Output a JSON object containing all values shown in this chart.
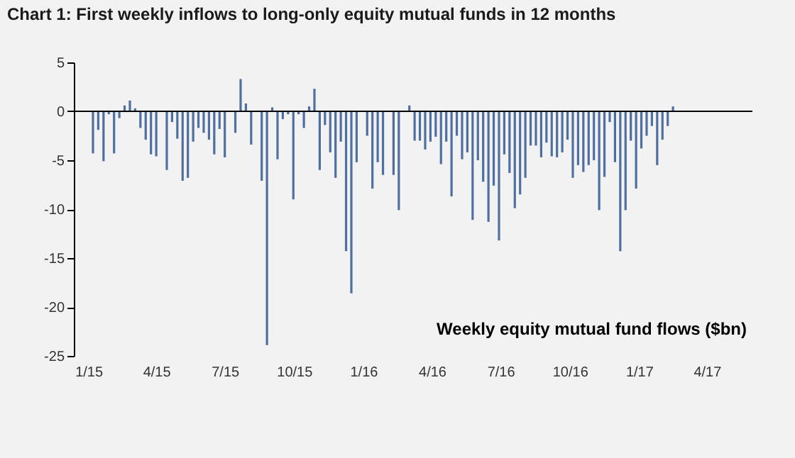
{
  "chart_data": {
    "type": "bar",
    "title": "Chart 1: First weekly inflows to long-only equity mutual funds in 12 months",
    "annotations": [
      "Weekly equity mutual fund flows ($bn)"
    ],
    "x": [
      "2015-01-07",
      "2015-01-14",
      "2015-01-21",
      "2015-01-28",
      "2015-02-04",
      "2015-02-11",
      "2015-02-18",
      "2015-02-25",
      "2015-03-04",
      "2015-03-11",
      "2015-03-18",
      "2015-03-25",
      "2015-04-01",
      "2015-04-08",
      "2015-04-15",
      "2015-04-22",
      "2015-04-29",
      "2015-05-06",
      "2015-05-13",
      "2015-05-20",
      "2015-05-27",
      "2015-06-03",
      "2015-06-10",
      "2015-06-17",
      "2015-06-24",
      "2015-07-01",
      "2015-07-08",
      "2015-07-15",
      "2015-07-22",
      "2015-07-29",
      "2015-08-05",
      "2015-08-12",
      "2015-08-19",
      "2015-08-26",
      "2015-09-02",
      "2015-09-09",
      "2015-09-16",
      "2015-09-23",
      "2015-09-30",
      "2015-10-07",
      "2015-10-14",
      "2015-10-21",
      "2015-10-28",
      "2015-11-04",
      "2015-11-11",
      "2015-11-18",
      "2015-11-25",
      "2015-12-02",
      "2015-12-09",
      "2015-12-16",
      "2015-12-23",
      "2015-12-30",
      "2016-01-06",
      "2016-01-13",
      "2016-01-20",
      "2016-01-27",
      "2016-02-03",
      "2016-02-10",
      "2016-02-17",
      "2016-02-24",
      "2016-03-02",
      "2016-03-09",
      "2016-03-16",
      "2016-03-23",
      "2016-03-30",
      "2016-04-06",
      "2016-04-13",
      "2016-04-20",
      "2016-04-27",
      "2016-05-04",
      "2016-05-11",
      "2016-05-18",
      "2016-05-25",
      "2016-06-01",
      "2016-06-08",
      "2016-06-15",
      "2016-06-22",
      "2016-06-29",
      "2016-07-06",
      "2016-07-13",
      "2016-07-20",
      "2016-07-27",
      "2016-08-03",
      "2016-08-10",
      "2016-08-17",
      "2016-08-24",
      "2016-08-31",
      "2016-09-07",
      "2016-09-14",
      "2016-09-21",
      "2016-09-28",
      "2016-10-05",
      "2016-10-12",
      "2016-10-19",
      "2016-10-26",
      "2016-11-02",
      "2016-11-09",
      "2016-11-16",
      "2016-11-23",
      "2016-11-30",
      "2016-12-07",
      "2016-12-14",
      "2016-12-21",
      "2016-12-28",
      "2017-01-04",
      "2017-01-11",
      "2017-01-18",
      "2017-01-25",
      "2017-02-01",
      "2017-02-08",
      "2017-02-15"
    ],
    "values": [
      -4.3,
      -1.9,
      -5.1,
      -0.3,
      -4.3,
      -0.7,
      0.6,
      1.1,
      0.3,
      -1.7,
      -2.9,
      -4.4,
      -4.6,
      null,
      -6.0,
      -1.1,
      -2.8,
      -7.1,
      -6.8,
      -3.1,
      -1.7,
      -2.2,
      -2.9,
      -4.4,
      -1.8,
      -4.7,
      null,
      -2.2,
      3.3,
      0.8,
      -3.4,
      null,
      -7.1,
      -23.9,
      0.4,
      -4.9,
      -0.8,
      -0.3,
      -9.0,
      -0.3,
      -1.7,
      0.5,
      2.3,
      -6.0,
      -1.4,
      -4.2,
      -6.8,
      -3.1,
      -14.3,
      -18.6,
      -5.2,
      null,
      -2.5,
      -7.9,
      -5.2,
      -6.5,
      null,
      -6.5,
      -10.1,
      null,
      0.6,
      -3.0,
      -3.0,
      -3.9,
      -3.1,
      -2.6,
      -5.4,
      -3.1,
      -8.7,
      -2.5,
      -4.9,
      -4.2,
      -11.1,
      -5.0,
      -7.2,
      -11.3,
      -7.6,
      -13.2,
      -4.4,
      -6.3,
      -9.9,
      -8.5,
      -6.8,
      -3.5,
      -3.5,
      -4.7,
      -3.2,
      -4.6,
      -4.7,
      -4.2,
      -2.9,
      -6.8,
      -5.5,
      -6.2,
      -5.5,
      -5.0,
      -10.1,
      -6.7,
      -1.1,
      -5.2,
      -14.3,
      -10.1,
      -3.0,
      -7.9,
      -3.8,
      -2.5,
      -1.5,
      -5.5,
      -2.9,
      -1.5,
      0.5
    ],
    "color": "#4f6f9f",
    "xlim": [
      "2014-12-22",
      "2017-05-22"
    ],
    "xticks": [
      {
        "value": "2015-01-01",
        "label": "1/15"
      },
      {
        "value": "2015-04-01",
        "label": "4/15"
      },
      {
        "value": "2015-07-01",
        "label": "7/15"
      },
      {
        "value": "2015-10-01",
        "label": "10/15"
      },
      {
        "value": "2016-01-01",
        "label": "1/16"
      },
      {
        "value": "2016-04-01",
        "label": "4/16"
      },
      {
        "value": "2016-07-01",
        "label": "7/16"
      },
      {
        "value": "2016-10-01",
        "label": "10/16"
      },
      {
        "value": "2017-01-01",
        "label": "1/17"
      },
      {
        "value": "2017-04-01",
        "label": "4/17"
      }
    ],
    "ylim": [
      -25,
      5
    ],
    "yticks": [
      -25,
      -20,
      -15,
      -10,
      -5,
      0,
      5
    ],
    "ref_lines": [
      {
        "axis": "y",
        "value": 0,
        "color": "#000000",
        "line_style": "solid"
      }
    ],
    "grid": false
  }
}
